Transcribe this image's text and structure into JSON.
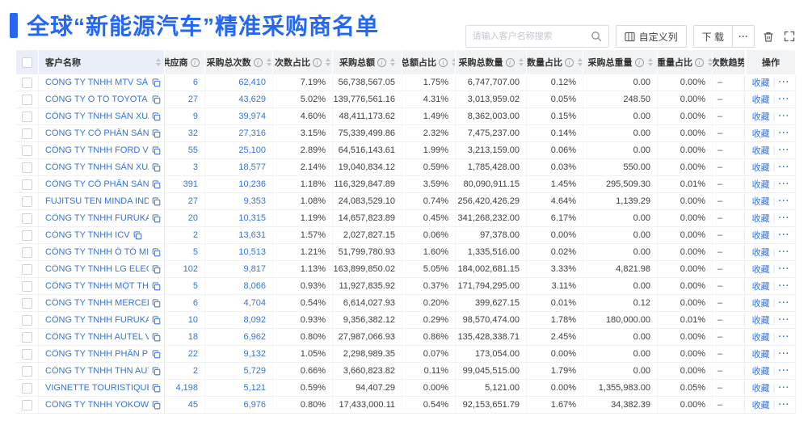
{
  "header": {
    "title": "全球“新能源汽车”精准采购商名单",
    "accent_color": "#2468f2"
  },
  "toolbar": {
    "search_placeholder": "请输入客户名称搜索",
    "customize_label": "自定义列",
    "download_label": "下 载",
    "more_label": "···",
    "icons": {
      "search": "magnifier-icon",
      "customize": "columns-icon",
      "delete": "trash-icon",
      "fullscreen": "expand-icon"
    }
  },
  "colors": {
    "link_blue": "#3573e0",
    "header_bg": "#f2f3f5",
    "pinned_header_bg": "#e9eef9"
  },
  "table": {
    "headers": [
      {
        "key": "name",
        "label": "客户名称",
        "info": false,
        "sort": true
      },
      {
        "key": "supplier",
        "label": "供应商",
        "info": true,
        "sort": true
      },
      {
        "key": "purchase_count",
        "label": "采购总次数",
        "info": true,
        "sort": true
      },
      {
        "key": "count_pct",
        "label": "次数占比",
        "info": true,
        "sort": true
      },
      {
        "key": "amount",
        "label": "采购总额",
        "info": true,
        "sort": true
      },
      {
        "key": "amount_pct",
        "label": "总额占比",
        "info": true,
        "sort": true
      },
      {
        "key": "quantity",
        "label": "采购总数量",
        "info": true,
        "sort": true
      },
      {
        "key": "quantity_pct",
        "label": "数量占比",
        "info": true,
        "sort": true
      },
      {
        "key": "weight",
        "label": "采购总重量",
        "info": true,
        "sort": true
      },
      {
        "key": "weight_pct",
        "label": "重量占比",
        "info": true,
        "sort": true
      },
      {
        "key": "trend",
        "label": "次数趋势",
        "info": false,
        "sort": false
      },
      {
        "key": "action",
        "label": "操作",
        "info": false,
        "sort": false
      }
    ],
    "action_labels": {
      "favorite": "收藏",
      "more": "···"
    },
    "rows": [
      {
        "name": "CÔNG TY TNHH MTV SẢN XUẤ...",
        "supplier": "6",
        "purchase_count": "62,410",
        "count_pct": "7.19%",
        "amount": "56,738,567.05",
        "amount_pct": "1.75%",
        "quantity": "6,747,707.00",
        "quantity_pct": "0.12%",
        "weight": "0.00",
        "weight_pct": "0.00%",
        "trend": "–"
      },
      {
        "name": "CÔNG TY Ô TÔ TOYOTA VIỆT ...",
        "supplier": "27",
        "purchase_count": "43,629",
        "count_pct": "5.02%",
        "amount": "139,776,561.16",
        "amount_pct": "4.31%",
        "quantity": "3,013,959.02",
        "quantity_pct": "0.05%",
        "weight": "248.50",
        "weight_pct": "0.00%",
        "trend": "–"
      },
      {
        "name": "CÔNG TY TNHH SẢN XUẤT VÀ ...",
        "supplier": "9",
        "purchase_count": "39,974",
        "count_pct": "4.60%",
        "amount": "48,411,173.62",
        "amount_pct": "1.49%",
        "quantity": "8,362,003.00",
        "quantity_pct": "0.15%",
        "weight": "0.00",
        "weight_pct": "0.00%",
        "trend": "–"
      },
      {
        "name": "CÔNG TY CỔ PHẦN SẢN XUẤT...",
        "supplier": "32",
        "purchase_count": "27,316",
        "count_pct": "3.15%",
        "amount": "75,339,499.86",
        "amount_pct": "2.32%",
        "quantity": "7,475,237.00",
        "quantity_pct": "0.14%",
        "weight": "0.00",
        "weight_pct": "0.00%",
        "trend": "–"
      },
      {
        "name": "CÔNG TY TNHH FORD VIỆT NAM",
        "supplier": "55",
        "purchase_count": "25,100",
        "count_pct": "2.89%",
        "amount": "64,516,143.61",
        "amount_pct": "1.99%",
        "quantity": "3,213,159.00",
        "quantity_pct": "0.06%",
        "weight": "0.00",
        "weight_pct": "0.00%",
        "trend": "–"
      },
      {
        "name": "CÔNG TY TNHH SẢN XUẤT VÀ ...",
        "supplier": "3",
        "purchase_count": "18,577",
        "count_pct": "2.14%",
        "amount": "19,040,834.12",
        "amount_pct": "0.59%",
        "quantity": "1,785,428.00",
        "quantity_pct": "0.03%",
        "weight": "550.00",
        "weight_pct": "0.00%",
        "trend": "–"
      },
      {
        "name": "CÔNG TY CỔ PHẦN SẢN XUẤT...",
        "supplier": "391",
        "purchase_count": "10,236",
        "count_pct": "1.18%",
        "amount": "116,329,847.89",
        "amount_pct": "3.59%",
        "quantity": "80,090,911.15",
        "quantity_pct": "1.45%",
        "weight": "295,509.30",
        "weight_pct": "0.01%",
        "trend": "–"
      },
      {
        "name": "FUJITSU TEN MINDA INDIA PVT...",
        "supplier": "27",
        "purchase_count": "9,353",
        "count_pct": "1.08%",
        "amount": "24,083,529.10",
        "amount_pct": "0.74%",
        "quantity": "256,420,426.29",
        "quantity_pct": "4.64%",
        "weight": "1,139.29",
        "weight_pct": "0.00%",
        "trend": "–"
      },
      {
        "name": "CÔNG TY TNHH FURUKAWA A...",
        "supplier": "20",
        "purchase_count": "10,315",
        "count_pct": "1.19%",
        "amount": "14,657,823.89",
        "amount_pct": "0.45%",
        "quantity": "341,268,232.00",
        "quantity_pct": "6.17%",
        "weight": "0.00",
        "weight_pct": "0.00%",
        "trend": "–"
      },
      {
        "name": "CÔNG TY TNHH ICV",
        "supplier": "2",
        "purchase_count": "13,631",
        "count_pct": "1.57%",
        "amount": "2,027,827.15",
        "amount_pct": "0.06%",
        "quantity": "97,378.00",
        "quantity_pct": "0.00%",
        "weight": "0.00",
        "weight_pct": "0.00%",
        "trend": "–"
      },
      {
        "name": "CÔNG TY TNHH Ô TÔ MITSUBI...",
        "supplier": "5",
        "purchase_count": "10,513",
        "count_pct": "1.21%",
        "amount": "51,799,780.93",
        "amount_pct": "1.60%",
        "quantity": "1,335,516.00",
        "quantity_pct": "0.02%",
        "weight": "0.00",
        "weight_pct": "0.00%",
        "trend": "–"
      },
      {
        "name": "CÔNG TY TNHH LG ELECTRON...",
        "supplier": "102",
        "purchase_count": "9,817",
        "count_pct": "1.13%",
        "amount": "163,899,850.02",
        "amount_pct": "5.05%",
        "quantity": "184,002,681.15",
        "quantity_pct": "3.33%",
        "weight": "4,821.98",
        "weight_pct": "0.00%",
        "trend": "–"
      },
      {
        "name": "CÔNG TY TNHH MỘT THÀNH V...",
        "supplier": "5",
        "purchase_count": "8,066",
        "count_pct": "0.93%",
        "amount": "11,927,835.92",
        "amount_pct": "0.37%",
        "quantity": "171,794,295.00",
        "quantity_pct": "3.11%",
        "weight": "0.00",
        "weight_pct": "0.00%",
        "trend": "–"
      },
      {
        "name": "CÔNG TY TNHH MERCEDES-B...",
        "supplier": "6",
        "purchase_count": "4,704",
        "count_pct": "0.54%",
        "amount": "6,614,027.93",
        "amount_pct": "0.20%",
        "quantity": "399,627.15",
        "quantity_pct": "0.01%",
        "weight": "0.12",
        "weight_pct": "0.00%",
        "trend": "–"
      },
      {
        "name": "CÔNG TY TNHH FURUKAWA A...",
        "supplier": "10",
        "purchase_count": "8,092",
        "count_pct": "0.93%",
        "amount": "9,356,382.12",
        "amount_pct": "0.29%",
        "quantity": "98,570,474.00",
        "quantity_pct": "1.78%",
        "weight": "180,000.00",
        "weight_pct": "0.01%",
        "trend": "–"
      },
      {
        "name": "CÔNG TY TNHH AUTEL VIỆT N...",
        "supplier": "18",
        "purchase_count": "6,962",
        "count_pct": "0.80%",
        "amount": "27,987,066.93",
        "amount_pct": "0.86%",
        "quantity": "135,428,338.71",
        "quantity_pct": "2.45%",
        "weight": "0.00",
        "weight_pct": "0.00%",
        "trend": "–"
      },
      {
        "name": "CÔNG TY TNHH PHÂN PHỐI T...",
        "supplier": "22",
        "purchase_count": "9,132",
        "count_pct": "1.05%",
        "amount": "2,298,989.35",
        "amount_pct": "0.07%",
        "quantity": "173,054.00",
        "quantity_pct": "0.00%",
        "weight": "0.00",
        "weight_pct": "0.00%",
        "trend": "–"
      },
      {
        "name": "CÔNG TY TNHH THN AUTOPAR...",
        "supplier": "2",
        "purchase_count": "5,729",
        "count_pct": "0.66%",
        "amount": "3,660,823.82",
        "amount_pct": "0.11%",
        "quantity": "99,045,515.00",
        "quantity_pct": "1.79%",
        "weight": "0.00",
        "weight_pct": "0.00%",
        "trend": "–"
      },
      {
        "name": "VIGNETTE TOURISTIQUE G UNI...",
        "supplier": "4,198",
        "purchase_count": "5,121",
        "count_pct": "0.59%",
        "amount": "94,407.29",
        "amount_pct": "0.00%",
        "quantity": "5,121.00",
        "quantity_pct": "0.00%",
        "weight": "1,355,983.00",
        "weight_pct": "0.05%",
        "trend": "–"
      },
      {
        "name": "CÔNG TY TNHH YOKOWO VIỆT...",
        "supplier": "45",
        "purchase_count": "6,976",
        "count_pct": "0.80%",
        "amount": "17,433,000.11",
        "amount_pct": "0.54%",
        "quantity": "92,153,651.79",
        "quantity_pct": "1.67%",
        "weight": "34,382.39",
        "weight_pct": "0.00%",
        "trend": "–"
      }
    ]
  }
}
